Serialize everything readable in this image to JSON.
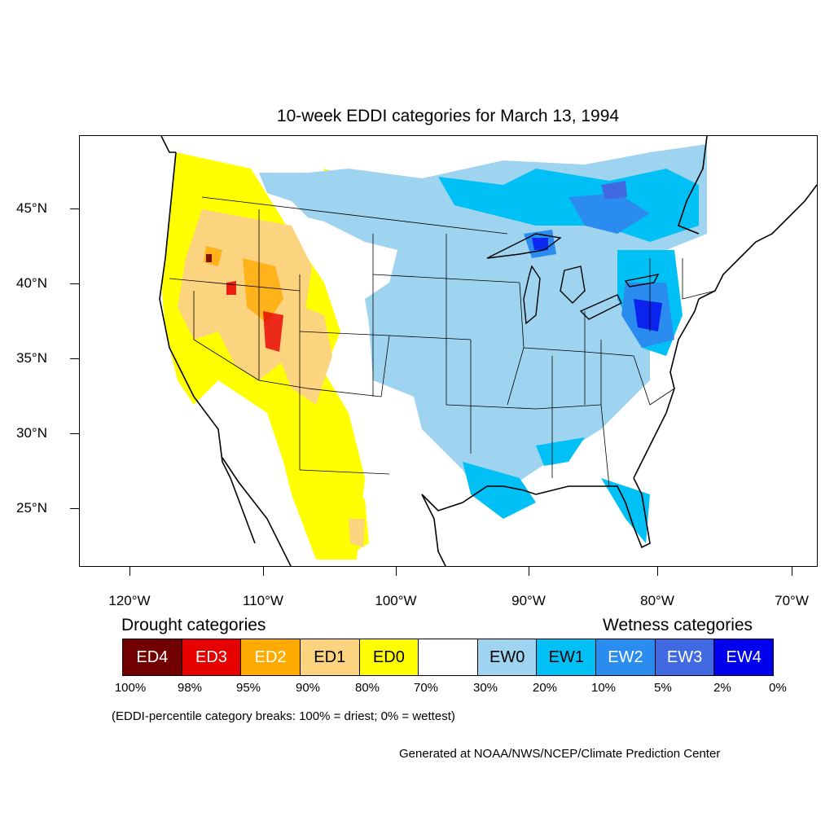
{
  "title": "10-week EDDI categories for March 13, 1994",
  "latitude_labels": [
    "45°N",
    "40°N",
    "35°N",
    "30°N",
    "25°N"
  ],
  "longitude_labels": [
    "120°W",
    "110°W",
    "100°W",
    "90°W",
    "80°W",
    "70°W"
  ],
  "drought_heading": "Drought categories",
  "wetness_heading": "Wetness categories",
  "categories": [
    {
      "label": "ED4",
      "color": "#730000",
      "text_color": "#ffffff"
    },
    {
      "label": "ED3",
      "color": "#e60000",
      "text_color": "#ffffff"
    },
    {
      "label": "ED2",
      "color": "#ffaa00",
      "text_color": "#ffffff"
    },
    {
      "label": "ED1",
      "color": "#fcd37f",
      "text_color": "#000000"
    },
    {
      "label": "ED0",
      "color": "#ffff00",
      "text_color": "#000000"
    },
    {
      "label": "",
      "color": "#ffffff",
      "text_color": "#000000"
    },
    {
      "label": "EW0",
      "color": "#9fd4f0",
      "text_color": "#000000"
    },
    {
      "label": "EW1",
      "color": "#00c0f5",
      "text_color": "#000000"
    },
    {
      "label": "EW2",
      "color": "#2b8cf0",
      "text_color": "#ffffff"
    },
    {
      "label": "EW3",
      "color": "#4169e1",
      "text_color": "#ffffff"
    },
    {
      "label": "EW4",
      "color": "#0000ee",
      "text_color": "#ffffff"
    }
  ],
  "percentile_breaks": [
    "100%",
    "98%",
    "95%",
    "90%",
    "80%",
    "70%",
    "30%",
    "20%",
    "10%",
    "5%",
    "2%",
    "0%"
  ],
  "note": "(EDDI-percentile category breaks: 100% = driest; 0% = wettest)",
  "credit": "Generated at NOAA/NWS/NCEP/Climate Prediction Center"
}
